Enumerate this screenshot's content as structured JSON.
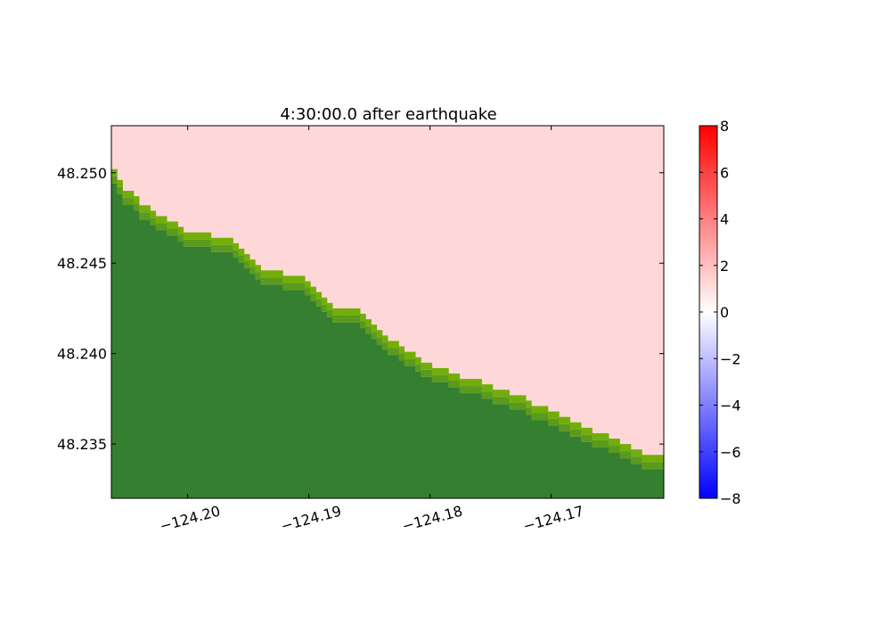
{
  "chart_data": {
    "type": "heatmap",
    "title": "4:30:00.0 after earthquake",
    "xlabel": "",
    "ylabel": "",
    "xlim": [
      -124.2063,
      -124.1607
    ],
    "ylim": [
      48.232,
      48.2526
    ],
    "x_ticks": [
      -124.2,
      -124.19,
      -124.18,
      -124.17
    ],
    "x_tick_labels": [
      "−124.20",
      "−124.19",
      "−124.18",
      "−124.17"
    ],
    "y_ticks": [
      48.25,
      48.245,
      48.24,
      48.235
    ],
    "y_tick_labels": [
      "48.250",
      "48.245",
      "48.240",
      "48.235"
    ],
    "grid": false,
    "colorbar": {
      "range": [
        -8,
        8
      ],
      "ticks": [
        8,
        6,
        4,
        2,
        0,
        -2,
        -4,
        -6,
        -8
      ],
      "tick_labels": [
        "8",
        "6",
        "4",
        "2",
        "0",
        "−2",
        "−4",
        "−6",
        "−8"
      ],
      "colormap": [
        "#0000ff",
        "#ffffff",
        "#ff0000"
      ]
    },
    "surface_value": 0.85,
    "colors": {
      "water": "#fed8d8",
      "land_dark": "#357f31",
      "land_mid": "#5a9a1e",
      "land_light": "#72ae09",
      "frame": "#000000"
    },
    "shoreline": {
      "lon": [
        -124.2063,
        -124.2058,
        -124.2048,
        -124.204,
        -124.2036,
        -124.2026,
        -124.2014,
        -124.2008,
        -124.1996,
        -124.1986,
        -124.1976,
        -124.1966,
        -124.1962,
        -124.1952,
        -124.1942,
        -124.1932,
        -124.192,
        -124.191,
        -124.1898,
        -124.189,
        -124.1882,
        -124.1876,
        -124.1868,
        -124.186,
        -124.185,
        -124.184,
        -124.183,
        -124.182,
        -124.181,
        -124.18,
        -124.1792,
        -124.1786,
        -124.1776,
        -124.1766,
        -124.1756,
        -124.1746,
        -124.1736,
        -124.1726,
        -124.1716,
        -124.1706,
        -124.1696,
        -124.1686,
        -124.1676,
        -124.1666,
        -124.1656,
        -124.1646,
        -124.1636,
        -124.1626,
        -124.1616,
        -124.1607
      ],
      "lat": [
        48.2502,
        48.2495,
        48.249,
        48.2484,
        48.2488,
        48.2482,
        48.2476,
        48.2472,
        48.2466,
        48.2466,
        48.2463,
        48.2463,
        48.2462,
        48.2452,
        48.2446,
        48.2444,
        48.2438,
        48.2436,
        48.2432,
        48.2426,
        48.242,
        48.2414,
        48.241,
        48.2406,
        48.2402,
        48.2398,
        48.2394,
        48.239,
        48.2386,
        48.238,
        48.2376,
        48.2372,
        48.2368,
        48.2362,
        48.2358,
        48.2356,
        48.2352,
        48.2348,
        48.2346,
        48.2344,
        48.234,
        48.2338,
        48.2334,
        48.233,
        48.2326,
        48.232,
        48.232,
        48.232,
        48.232,
        48.232
      ]
    },
    "shoreline_steps": {
      "lon_start": -124.2063,
      "lon_end": -124.1607,
      "lat_upper": [
        48.2502,
        48.2496,
        48.249,
        48.249,
        48.2487,
        48.2482,
        48.2482,
        48.2479,
        48.2476,
        48.2476,
        48.2473,
        48.2473,
        48.247,
        48.2467,
        48.2467,
        48.2467,
        48.2467,
        48.2467,
        48.2464,
        48.2464,
        48.2464,
        48.2464,
        48.2461,
        48.2458,
        48.2455,
        48.2452,
        48.2449,
        48.2446,
        48.2446,
        48.2446,
        48.2446,
        48.2443,
        48.2443,
        48.2443,
        48.2443,
        48.244,
        48.2437,
        48.2434,
        48.2431,
        48.2428,
        48.2425,
        48.2425,
        48.2425,
        48.2425,
        48.2425,
        48.2422,
        48.2419,
        48.2416,
        48.2413,
        48.241,
        48.2407,
        48.2407,
        48.2404,
        48.2401,
        48.2401,
        48.2398,
        48.2395,
        48.2395,
        48.2392,
        48.2392,
        48.2392,
        48.2389,
        48.2389,
        48.2386,
        48.2386,
        48.2386,
        48.2386,
        48.2383,
        48.2383,
        48.238,
        48.238,
        48.238,
        48.2377,
        48.2377,
        48.2377,
        48.2374,
        48.2371,
        48.2371,
        48.2371,
        48.2368,
        48.2368,
        48.2365,
        48.2365,
        48.2362,
        48.2362,
        48.2359,
        48.2359,
        48.2356,
        48.2356,
        48.2356,
        48.2353,
        48.2353,
        48.235,
        48.235,
        48.2347,
        48.2347,
        48.2344,
        48.2344,
        48.2344,
        48.2344
      ]
    }
  }
}
